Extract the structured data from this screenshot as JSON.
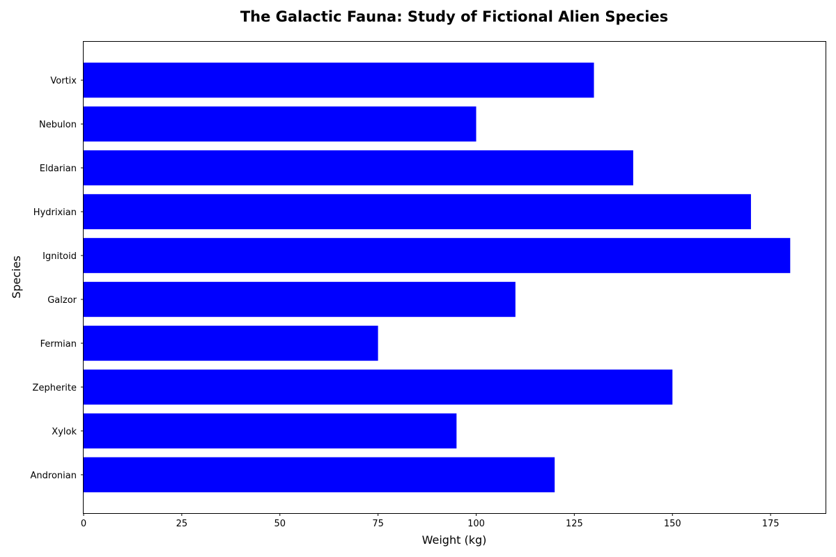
{
  "chart_data": {
    "type": "bar",
    "orientation": "horizontal",
    "title": "The Galactic Fauna: Study of Fictional Alien Species",
    "xlabel": "Weight (kg)",
    "ylabel": "Species",
    "categories": [
      "Andronian",
      "Xylok",
      "Zepherite",
      "Fermian",
      "Galzor",
      "Ignitoid",
      "Hydrixian",
      "Eldarian",
      "Nebulon",
      "Vortix"
    ],
    "values": [
      120,
      95,
      150,
      75,
      110,
      180,
      170,
      140,
      100,
      130
    ],
    "xlim": [
      0,
      189
    ],
    "xticks": [
      0,
      25,
      50,
      75,
      100,
      125,
      150,
      175
    ],
    "bar_color": "#0000ff",
    "grid": false
  }
}
